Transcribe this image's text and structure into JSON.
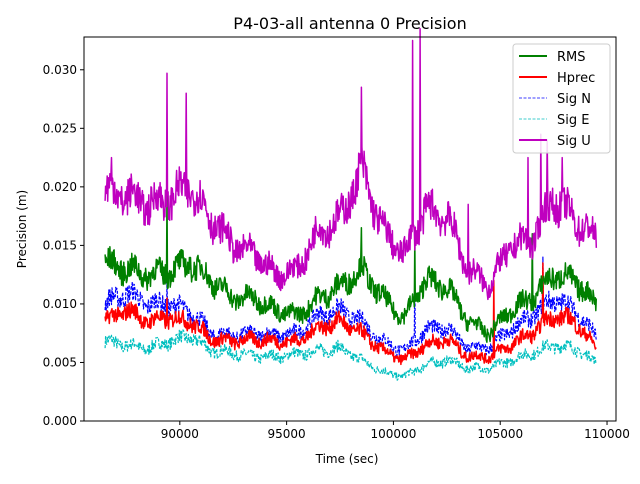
{
  "chart_data": {
    "type": "line",
    "title": "P4-03-all antenna 0 Precision",
    "xlabel": "Time (sec)",
    "ylabel": "Precision (m)",
    "xlim": [
      85514,
      110420
    ],
    "ylim": [
      0,
      0.0328
    ],
    "xticks": [
      90000,
      95000,
      100000,
      105000,
      110000
    ],
    "yticks": [
      0.0,
      0.005,
      0.01,
      0.015,
      0.02,
      0.025,
      0.03
    ],
    "ytick_labels": [
      "0.000",
      "0.005",
      "0.010",
      "0.015",
      "0.020",
      "0.025",
      "0.030"
    ],
    "grid": false,
    "legend_position": "top-right",
    "x": [
      86500,
      87500,
      88500,
      89500,
      90500,
      91500,
      92500,
      93500,
      94500,
      95500,
      96500,
      97500,
      98500,
      99500,
      100500,
      101500,
      102500,
      103500,
      104500,
      105500,
      106500,
      107500,
      108500,
      109500
    ],
    "series": [
      {
        "name": "RMS",
        "color": "#008000",
        "style": "solid",
        "values": [
          0.0135,
          0.013,
          0.0125,
          0.0128,
          0.0135,
          0.012,
          0.0105,
          0.0105,
          0.0095,
          0.009,
          0.0105,
          0.0115,
          0.013,
          0.0105,
          0.0088,
          0.012,
          0.0115,
          0.0085,
          0.0075,
          0.0095,
          0.0105,
          0.0125,
          0.012,
          0.01
        ],
        "spikes": [
          [
            89400,
            0.0195
          ],
          [
            98500,
            0.0165
          ],
          [
            101000,
            0.0155
          ],
          [
            106500,
            0.016
          ]
        ]
      },
      {
        "name": "Hprec",
        "color": "#ff0000",
        "style": "solid",
        "values": [
          0.0085,
          0.0095,
          0.0085,
          0.0088,
          0.0085,
          0.007,
          0.0068,
          0.007,
          0.0068,
          0.0068,
          0.008,
          0.0085,
          0.0075,
          0.006,
          0.0052,
          0.0065,
          0.007,
          0.0055,
          0.0055,
          0.0065,
          0.0075,
          0.009,
          0.0085,
          0.0062
        ],
        "spikes": [
          [
            89400,
            0.0105
          ],
          [
            104700,
            0.012
          ],
          [
            107000,
            0.0135
          ]
        ]
      },
      {
        "name": "Sig N",
        "color": "#0000ff",
        "style": "dashed",
        "values": [
          0.01,
          0.011,
          0.01,
          0.01,
          0.0093,
          0.0075,
          0.0073,
          0.0075,
          0.0073,
          0.0075,
          0.009,
          0.0095,
          0.0085,
          0.0068,
          0.006,
          0.0078,
          0.008,
          0.0062,
          0.0063,
          0.0078,
          0.009,
          0.0105,
          0.0095,
          0.0072
        ],
        "spikes": [
          [
            89400,
            0.012
          ],
          [
            101000,
            0.0125
          ],
          [
            107000,
            0.014
          ]
        ]
      },
      {
        "name": "Sig E",
        "color": "#00bfbf",
        "style": "dashed",
        "values": [
          0.0068,
          0.0065,
          0.0062,
          0.0068,
          0.0072,
          0.006,
          0.0058,
          0.0055,
          0.0055,
          0.0057,
          0.006,
          0.0062,
          0.0052,
          0.0042,
          0.0038,
          0.0048,
          0.0052,
          0.0045,
          0.0045,
          0.0052,
          0.0058,
          0.0065,
          0.0062,
          0.005
        ],
        "spikes": []
      },
      {
        "name": "Sig U",
        "color": "#bf00bf",
        "style": "solid",
        "values": [
          0.0197,
          0.0193,
          0.0185,
          0.019,
          0.02,
          0.0172,
          0.015,
          0.0142,
          0.0125,
          0.0129,
          0.0163,
          0.0172,
          0.0215,
          0.0163,
          0.0142,
          0.018,
          0.0176,
          0.0129,
          0.0116,
          0.015,
          0.0155,
          0.019,
          0.0172,
          0.0155
        ],
        "spikes": [
          [
            86800,
            0.0225
          ],
          [
            89400,
            0.0297
          ],
          [
            90300,
            0.028
          ],
          [
            98500,
            0.0285
          ],
          [
            100900,
            0.0325
          ],
          [
            101250,
            0.0335
          ],
          [
            103500,
            0.0185
          ],
          [
            106300,
            0.0225
          ],
          [
            106900,
            0.0245
          ],
          [
            107200,
            0.024
          ],
          [
            107900,
            0.0225
          ]
        ]
      }
    ]
  }
}
